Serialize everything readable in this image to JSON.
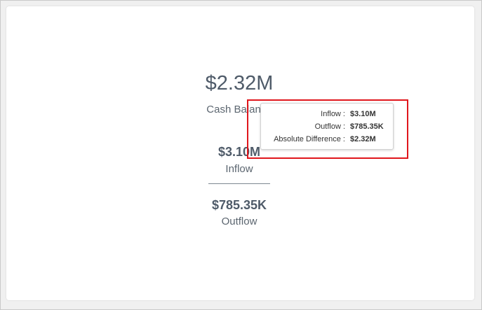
{
  "kpi": {
    "main_value": "$2.32M",
    "main_label": "Cash Balance",
    "inflow_value": "$3.10M",
    "inflow_label": "Inflow",
    "outflow_value": "$785.35K",
    "outflow_label": "Outflow"
  },
  "tooltip": {
    "rows": [
      {
        "label": "Inflow :",
        "value": "$3.10M"
      },
      {
        "label": "Outflow :",
        "value": "$785.35K"
      },
      {
        "label": "Absolute Difference :",
        "value": "$2.32M"
      }
    ]
  },
  "colors": {
    "highlight": "#e0161c",
    "text_primary": "#4f5b69",
    "text_secondary": "#5c6670"
  }
}
